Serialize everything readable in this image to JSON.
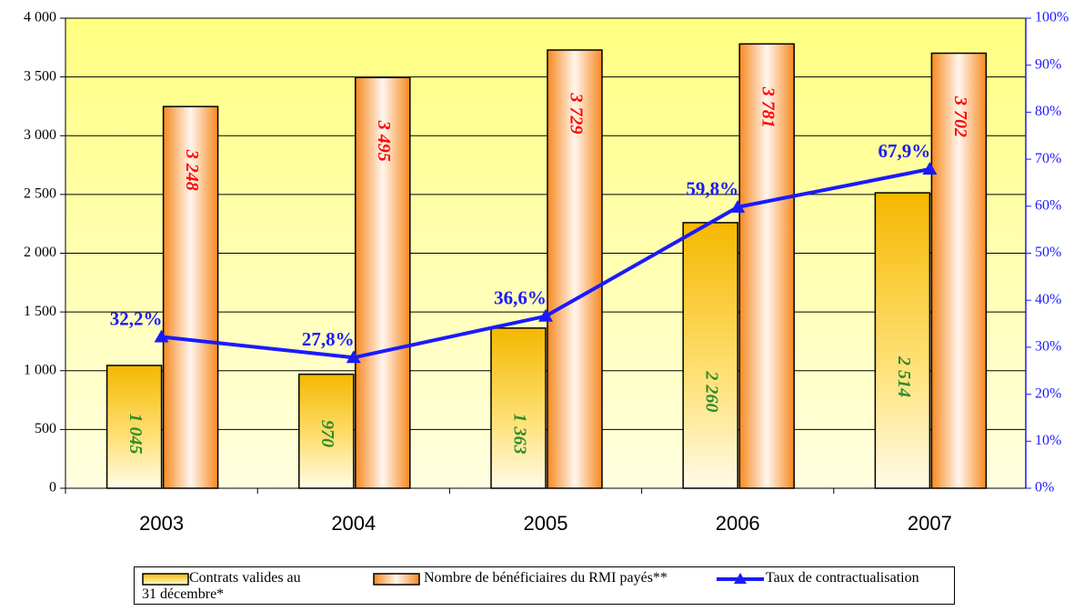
{
  "chart_data": {
    "type": "bar-line",
    "categories": [
      "2003",
      "2004",
      "2005",
      "2006",
      "2007"
    ],
    "series": [
      {
        "name": "Contrats valides au 31 décembre*",
        "color": "#f5b800",
        "label_color": "#2e8b2e",
        "values": [
          1045,
          970,
          1363,
          2260,
          2514
        ],
        "value_labels": [
          "1 045",
          "970",
          "1 363",
          "2 260",
          "2 514"
        ]
      },
      {
        "name": "Nombre de bénéficiaires du RMI payés**",
        "color": "#f7891f",
        "label_color": "#ff0000",
        "values": [
          3248,
          3495,
          3729,
          3781,
          3702
        ],
        "value_labels": [
          "3 248",
          "3 495",
          "3 729",
          "3 781",
          "3 702"
        ]
      },
      {
        "name": "Taux de contractualisation",
        "type": "line",
        "axis": "y2",
        "color": "#1a1aff",
        "values": [
          32.2,
          27.8,
          36.6,
          59.8,
          67.9
        ],
        "value_labels": [
          "32,2%",
          "27,8%",
          "36,6%",
          "59,8%",
          "67,9%"
        ]
      }
    ],
    "ylim": [
      0,
      4000
    ],
    "yticks": [
      0,
      500,
      {
        "value": 1000,
        "label": "1 000"
      },
      {
        "value": 1500,
        "label": "1 500"
      },
      {
        "value": 2000,
        "label": "2 000"
      },
      {
        "value": 2500,
        "label": "2 500"
      },
      {
        "value": 3000,
        "label": "3 000"
      },
      {
        "value": 3500,
        "label": "3 500"
      },
      {
        "value": 4000,
        "label": "4 000"
      }
    ],
    "y2lim": [
      0,
      100
    ],
    "y2ticks": [
      {
        "value": 0,
        "label": "0%"
      },
      {
        "value": 10,
        "label": "10%"
      },
      {
        "value": 20,
        "label": "20%"
      },
      {
        "value": 30,
        "label": "30%"
      },
      {
        "value": 40,
        "label": "40%"
      },
      {
        "value": 50,
        "label": "50%"
      },
      {
        "value": 60,
        "label": "60%"
      },
      {
        "value": 70,
        "label": "70%"
      },
      {
        "value": 80,
        "label": "80%"
      },
      {
        "value": 90,
        "label": "90%"
      },
      {
        "value": 100,
        "label": "100%"
      }
    ],
    "grid": true
  }
}
